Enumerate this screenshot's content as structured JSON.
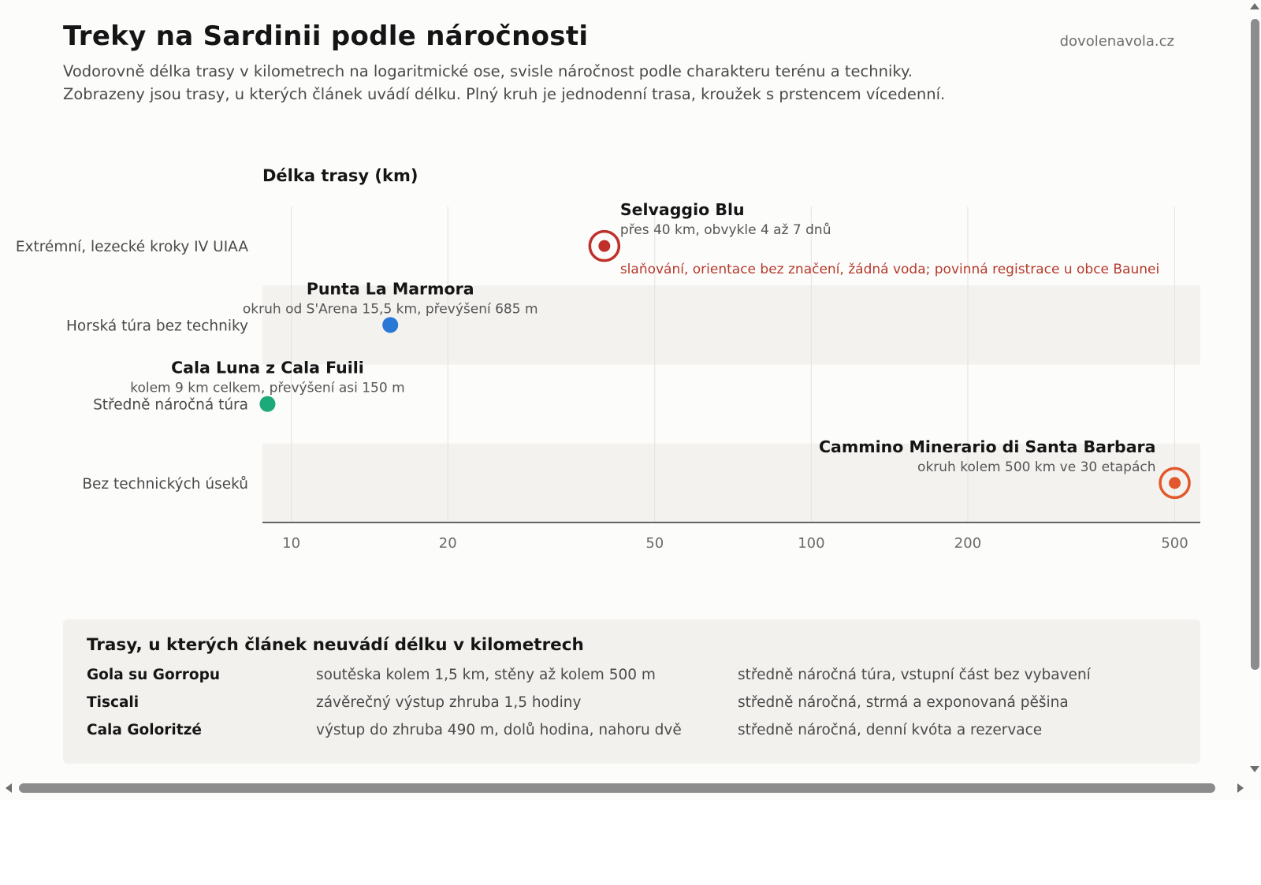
{
  "header": {
    "title": "Treky na Sardinii podle náročnosti",
    "site": "dovolenavola.cz",
    "subtitle_lines": [
      "Vodorovně délka trasy v kilometrech na logaritmické ose, svisle náročnost podle charakteru terénu a techniky.",
      "Zobrazeny jsou trasy, u kterých článek uvádí délku. Plný kruh je jednodenní trasa, kroužek s prstencem vícedenní."
    ]
  },
  "chart_data": {
    "type": "scatter",
    "xlabel": "Délka trasy (km)",
    "x_scale": "log",
    "xlim": [
      8.8,
      560
    ],
    "x_ticks": [
      10,
      20,
      50,
      100,
      200,
      500
    ],
    "x_tick_labels": [
      "10",
      "20",
      "50",
      "100",
      "200",
      "500"
    ],
    "grid": true,
    "y_categories": [
      "Extrémní, lezecké kroky IV UIAA",
      "Horská túra bez techniky",
      "Středně náročná túra",
      "Bez technických úseků"
    ],
    "points": [
      {
        "name": "Selvaggio Blu",
        "x": 40,
        "category": "Extrémní, lezecké kroky IV UIAA",
        "multi_day": true,
        "detail": "přes 40 km, obvykle 4 až 7 dnů",
        "warning": "slaňování, orientace bez značení, žádná voda; povinná registrace u obce Baunei",
        "color": "#c0302b"
      },
      {
        "name": "Punta La Marmora",
        "x": 15.5,
        "category": "Horská túra bez techniky",
        "multi_day": false,
        "detail": "okruh od S'Arena 15,5 km, převýšení 685 m",
        "color": "#2a78d6"
      },
      {
        "name": "Cala Luna z Cala Fuili",
        "x": 9,
        "category": "Středně náročná túra",
        "multi_day": false,
        "detail": "kolem 9 km celkem, převýšení asi 150 m",
        "color": "#1daa7a"
      },
      {
        "name": "Cammino Minerario di Santa Barbara",
        "x": 500,
        "category": "Bez technických úseků",
        "multi_day": true,
        "detail": "okruh kolem 500 km ve 30 etapách",
        "color": "#e2572c"
      }
    ]
  },
  "notes": {
    "title": "Trasy, u kterých článek neuvádí délku v kilometrech",
    "rows": [
      {
        "name": "Gola su Gorropu",
        "detail": "soutěska kolem 1,5 km, stěny až kolem 500 m",
        "difficulty": "středně náročná túra, vstupní část bez vybavení"
      },
      {
        "name": "Tiscali",
        "detail": "závěrečný výstup zhruba 1,5 hodiny",
        "difficulty": "středně náročná, strmá a exponovaná pěšina"
      },
      {
        "name": "Cala Goloritzé",
        "detail": "výstup do zhruba 490 m, dolů hodina, nahoru dvě",
        "difficulty": "středně náročná, denní kvóta a rezervace"
      }
    ]
  }
}
